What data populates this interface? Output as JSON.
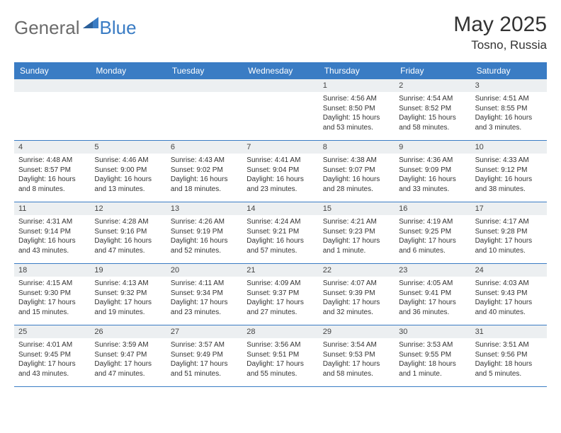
{
  "logo": {
    "general": "General",
    "blue": "Blue"
  },
  "title": "May 2025",
  "location": "Tosno, Russia",
  "colors": {
    "header_bg": "#3a7cc4",
    "daynum_bg": "#eceff1",
    "border": "#3a7cc4",
    "text": "#333333",
    "logo_gray": "#6b6b6b",
    "logo_blue": "#3a7cc4"
  },
  "weekdays": [
    "Sunday",
    "Monday",
    "Tuesday",
    "Wednesday",
    "Thursday",
    "Friday",
    "Saturday"
  ],
  "weeks": [
    [
      {
        "day": "",
        "lines": []
      },
      {
        "day": "",
        "lines": []
      },
      {
        "day": "",
        "lines": []
      },
      {
        "day": "",
        "lines": []
      },
      {
        "day": "1",
        "lines": [
          "Sunrise: 4:56 AM",
          "Sunset: 8:50 PM",
          "Daylight: 15 hours and 53 minutes."
        ]
      },
      {
        "day": "2",
        "lines": [
          "Sunrise: 4:54 AM",
          "Sunset: 8:52 PM",
          "Daylight: 15 hours and 58 minutes."
        ]
      },
      {
        "day": "3",
        "lines": [
          "Sunrise: 4:51 AM",
          "Sunset: 8:55 PM",
          "Daylight: 16 hours and 3 minutes."
        ]
      }
    ],
    [
      {
        "day": "4",
        "lines": [
          "Sunrise: 4:48 AM",
          "Sunset: 8:57 PM",
          "Daylight: 16 hours and 8 minutes."
        ]
      },
      {
        "day": "5",
        "lines": [
          "Sunrise: 4:46 AM",
          "Sunset: 9:00 PM",
          "Daylight: 16 hours and 13 minutes."
        ]
      },
      {
        "day": "6",
        "lines": [
          "Sunrise: 4:43 AM",
          "Sunset: 9:02 PM",
          "Daylight: 16 hours and 18 minutes."
        ]
      },
      {
        "day": "7",
        "lines": [
          "Sunrise: 4:41 AM",
          "Sunset: 9:04 PM",
          "Daylight: 16 hours and 23 minutes."
        ]
      },
      {
        "day": "8",
        "lines": [
          "Sunrise: 4:38 AM",
          "Sunset: 9:07 PM",
          "Daylight: 16 hours and 28 minutes."
        ]
      },
      {
        "day": "9",
        "lines": [
          "Sunrise: 4:36 AM",
          "Sunset: 9:09 PM",
          "Daylight: 16 hours and 33 minutes."
        ]
      },
      {
        "day": "10",
        "lines": [
          "Sunrise: 4:33 AM",
          "Sunset: 9:12 PM",
          "Daylight: 16 hours and 38 minutes."
        ]
      }
    ],
    [
      {
        "day": "11",
        "lines": [
          "Sunrise: 4:31 AM",
          "Sunset: 9:14 PM",
          "Daylight: 16 hours and 43 minutes."
        ]
      },
      {
        "day": "12",
        "lines": [
          "Sunrise: 4:28 AM",
          "Sunset: 9:16 PM",
          "Daylight: 16 hours and 47 minutes."
        ]
      },
      {
        "day": "13",
        "lines": [
          "Sunrise: 4:26 AM",
          "Sunset: 9:19 PM",
          "Daylight: 16 hours and 52 minutes."
        ]
      },
      {
        "day": "14",
        "lines": [
          "Sunrise: 4:24 AM",
          "Sunset: 9:21 PM",
          "Daylight: 16 hours and 57 minutes."
        ]
      },
      {
        "day": "15",
        "lines": [
          "Sunrise: 4:21 AM",
          "Sunset: 9:23 PM",
          "Daylight: 17 hours and 1 minute."
        ]
      },
      {
        "day": "16",
        "lines": [
          "Sunrise: 4:19 AM",
          "Sunset: 9:25 PM",
          "Daylight: 17 hours and 6 minutes."
        ]
      },
      {
        "day": "17",
        "lines": [
          "Sunrise: 4:17 AM",
          "Sunset: 9:28 PM",
          "Daylight: 17 hours and 10 minutes."
        ]
      }
    ],
    [
      {
        "day": "18",
        "lines": [
          "Sunrise: 4:15 AM",
          "Sunset: 9:30 PM",
          "Daylight: 17 hours and 15 minutes."
        ]
      },
      {
        "day": "19",
        "lines": [
          "Sunrise: 4:13 AM",
          "Sunset: 9:32 PM",
          "Daylight: 17 hours and 19 minutes."
        ]
      },
      {
        "day": "20",
        "lines": [
          "Sunrise: 4:11 AM",
          "Sunset: 9:34 PM",
          "Daylight: 17 hours and 23 minutes."
        ]
      },
      {
        "day": "21",
        "lines": [
          "Sunrise: 4:09 AM",
          "Sunset: 9:37 PM",
          "Daylight: 17 hours and 27 minutes."
        ]
      },
      {
        "day": "22",
        "lines": [
          "Sunrise: 4:07 AM",
          "Sunset: 9:39 PM",
          "Daylight: 17 hours and 32 minutes."
        ]
      },
      {
        "day": "23",
        "lines": [
          "Sunrise: 4:05 AM",
          "Sunset: 9:41 PM",
          "Daylight: 17 hours and 36 minutes."
        ]
      },
      {
        "day": "24",
        "lines": [
          "Sunrise: 4:03 AM",
          "Sunset: 9:43 PM",
          "Daylight: 17 hours and 40 minutes."
        ]
      }
    ],
    [
      {
        "day": "25",
        "lines": [
          "Sunrise: 4:01 AM",
          "Sunset: 9:45 PM",
          "Daylight: 17 hours and 43 minutes."
        ]
      },
      {
        "day": "26",
        "lines": [
          "Sunrise: 3:59 AM",
          "Sunset: 9:47 PM",
          "Daylight: 17 hours and 47 minutes."
        ]
      },
      {
        "day": "27",
        "lines": [
          "Sunrise: 3:57 AM",
          "Sunset: 9:49 PM",
          "Daylight: 17 hours and 51 minutes."
        ]
      },
      {
        "day": "28",
        "lines": [
          "Sunrise: 3:56 AM",
          "Sunset: 9:51 PM",
          "Daylight: 17 hours and 55 minutes."
        ]
      },
      {
        "day": "29",
        "lines": [
          "Sunrise: 3:54 AM",
          "Sunset: 9:53 PM",
          "Daylight: 17 hours and 58 minutes."
        ]
      },
      {
        "day": "30",
        "lines": [
          "Sunrise: 3:53 AM",
          "Sunset: 9:55 PM",
          "Daylight: 18 hours and 1 minute."
        ]
      },
      {
        "day": "31",
        "lines": [
          "Sunrise: 3:51 AM",
          "Sunset: 9:56 PM",
          "Daylight: 18 hours and 5 minutes."
        ]
      }
    ]
  ]
}
